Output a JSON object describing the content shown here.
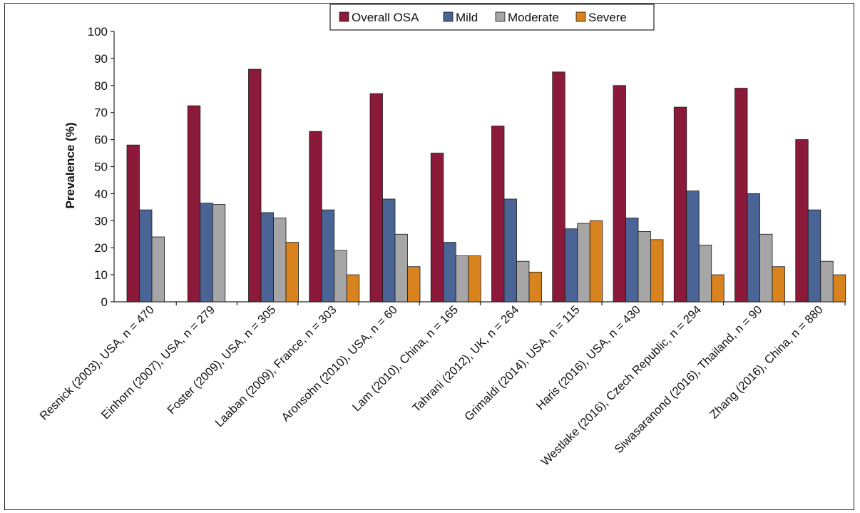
{
  "chart_data": {
    "type": "bar",
    "ylabel": "Prevalence (%)",
    "xlabel": "",
    "title": "",
    "ylim": [
      0,
      100
    ],
    "yticks": [
      0,
      10,
      20,
      30,
      40,
      50,
      60,
      70,
      80,
      90,
      100
    ],
    "grid": false,
    "legend": "top-center",
    "categories": [
      "Resnick (2003), USA, n = 470",
      "Einhorn (2007), USA, n = 279",
      "Foster (2009), USA, n = 305",
      "Laaban (2009), France, n = 303",
      "Aronsohn (2010), USA, n = 60",
      "Lam (2010), China, n = 165",
      "Tahrani (2012), UK, n = 264",
      "Grimaldi (2014), USA, n = 115",
      "Haris (2016), USA, n = 430",
      "Westlake (2016), Czech Republic, n = 294",
      "Siwasaranond (2016), Thailand, n = 90",
      "Zhang (2016), China, n = 880"
    ],
    "series": [
      {
        "name": "Overall OSA",
        "color": "#8b1a3a",
        "values": [
          58,
          72.5,
          86,
          63,
          77,
          55,
          65,
          85,
          80,
          72,
          79,
          60
        ]
      },
      {
        "name": "Mild",
        "color": "#4a6496",
        "values": [
          34,
          36.5,
          33,
          34,
          38,
          22,
          38,
          27,
          31,
          41,
          40,
          34
        ]
      },
      {
        "name": "Moderate",
        "color": "#a6a6a6",
        "values": [
          24,
          36,
          31,
          19,
          25,
          17,
          15,
          29,
          26,
          21,
          25,
          15
        ]
      },
      {
        "name": "Severe",
        "color": "#d9831f",
        "values": [
          null,
          null,
          22,
          10,
          13,
          17,
          11,
          30,
          23,
          10,
          13,
          10
        ]
      }
    ]
  }
}
